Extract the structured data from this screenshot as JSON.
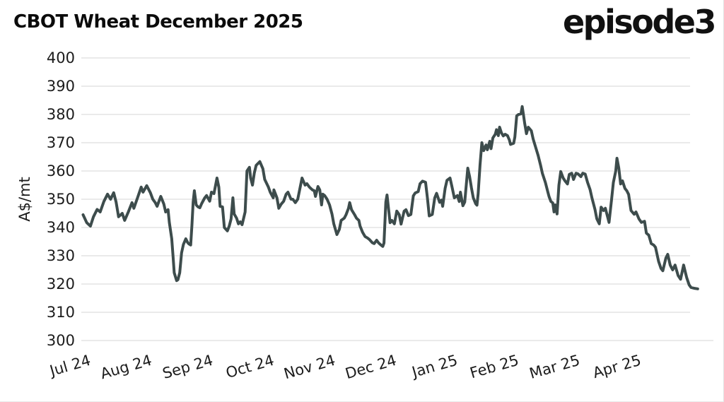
{
  "header": {
    "title": "CBOT Wheat December 2025",
    "logo": "episode3"
  },
  "chart_data": {
    "type": "line",
    "title": "CBOT Wheat December 2025",
    "xlabel": "",
    "ylabel": "A$/mt",
    "ylim": [
      300,
      400
    ],
    "y_ticks": [
      400,
      390,
      380,
      370,
      360,
      350,
      340,
      330,
      320,
      310,
      300
    ],
    "x_tick_labels": [
      "Jul 24",
      "Aug 24",
      "Sep 24",
      "Oct 24",
      "Nov 24",
      "Dec 24",
      "Jan 25",
      "Feb 25",
      "Mar 25",
      "Apr 25"
    ],
    "x_unit": "months since 1 Jul 2024 (0 = Jul 24 tick, 9 = Apr 25 tick)",
    "grid": "horizontal gridlines on, vertical off",
    "legend": "none",
    "line_color": "#3d4c4c",
    "grid_color": "#e3e3e3",
    "axis_text_color": "#1c1c1c",
    "series": [
      {
        "name": "CBOT Wheat December 2025 futures price (A$/mt)",
        "points": [
          [
            0.0,
            344.5
          ],
          [
            0.06,
            341.7
          ],
          [
            0.12,
            340.5
          ],
          [
            0.17,
            343.8
          ],
          [
            0.23,
            346.4
          ],
          [
            0.28,
            345.5
          ],
          [
            0.34,
            349.2
          ],
          [
            0.4,
            351.8
          ],
          [
            0.45,
            350.0
          ],
          [
            0.5,
            352.3
          ],
          [
            0.54,
            349.0
          ],
          [
            0.58,
            343.8
          ],
          [
            0.64,
            345.0
          ],
          [
            0.68,
            342.5
          ],
          [
            0.74,
            345.5
          ],
          [
            0.8,
            348.8
          ],
          [
            0.83,
            346.8
          ],
          [
            0.89,
            350.5
          ],
          [
            0.95,
            354.3
          ],
          [
            0.98,
            352.5
          ],
          [
            1.04,
            354.8
          ],
          [
            1.1,
            352.3
          ],
          [
            1.14,
            350.0
          ],
          [
            1.18,
            348.8
          ],
          [
            1.21,
            347.5
          ],
          [
            1.27,
            351.0
          ],
          [
            1.32,
            348.3
          ],
          [
            1.35,
            345.5
          ],
          [
            1.39,
            346.3
          ],
          [
            1.41,
            341.8
          ],
          [
            1.45,
            336.0
          ],
          [
            1.47,
            330.0
          ],
          [
            1.49,
            324.0
          ],
          [
            1.53,
            321.2
          ],
          [
            1.55,
            321.5
          ],
          [
            1.58,
            324.0
          ],
          [
            1.61,
            331.0
          ],
          [
            1.64,
            334.0
          ],
          [
            1.68,
            336.0
          ],
          [
            1.71,
            334.7
          ],
          [
            1.73,
            334.2
          ],
          [
            1.76,
            333.8
          ],
          [
            1.78,
            341.0
          ],
          [
            1.8,
            349.0
          ],
          [
            1.82,
            353.0
          ],
          [
            1.85,
            348.0
          ],
          [
            1.88,
            347.3
          ],
          [
            1.91,
            347.0
          ],
          [
            1.94,
            348.5
          ],
          [
            1.99,
            350.5
          ],
          [
            2.02,
            351.3
          ],
          [
            2.07,
            349.3
          ],
          [
            2.1,
            352.5
          ],
          [
            2.14,
            352.0
          ],
          [
            2.19,
            357.5
          ],
          [
            2.22,
            354.3
          ],
          [
            2.24,
            347.5
          ],
          [
            2.28,
            347.3
          ],
          [
            2.31,
            340.0
          ],
          [
            2.36,
            338.8
          ],
          [
            2.39,
            340.5
          ],
          [
            2.42,
            343.0
          ],
          [
            2.45,
            350.5
          ],
          [
            2.47,
            344.8
          ],
          [
            2.51,
            343.3
          ],
          [
            2.54,
            341.3
          ],
          [
            2.57,
            342.0
          ],
          [
            2.6,
            341.0
          ],
          [
            2.65,
            345.5
          ],
          [
            2.68,
            360.0
          ],
          [
            2.72,
            361.3
          ],
          [
            2.74,
            357.5
          ],
          [
            2.77,
            355.0
          ],
          [
            2.8,
            359.3
          ],
          [
            2.83,
            362.0
          ],
          [
            2.89,
            363.3
          ],
          [
            2.94,
            360.8
          ],
          [
            2.97,
            357.0
          ],
          [
            3.03,
            354.3
          ],
          [
            3.06,
            352.5
          ],
          [
            3.11,
            350.5
          ],
          [
            3.12,
            353.3
          ],
          [
            3.17,
            350.5
          ],
          [
            3.2,
            346.8
          ],
          [
            3.24,
            348.3
          ],
          [
            3.28,
            349.3
          ],
          [
            3.32,
            351.8
          ],
          [
            3.35,
            352.5
          ],
          [
            3.4,
            350.0
          ],
          [
            3.43,
            350.0
          ],
          [
            3.47,
            348.8
          ],
          [
            3.51,
            350.0
          ],
          [
            3.55,
            354.3
          ],
          [
            3.58,
            357.5
          ],
          [
            3.63,
            355.0
          ],
          [
            3.66,
            355.5
          ],
          [
            3.7,
            354.3
          ],
          [
            3.75,
            353.3
          ],
          [
            3.78,
            353.0
          ],
          [
            3.8,
            351.0
          ],
          [
            3.84,
            354.5
          ],
          [
            3.87,
            353.3
          ],
          [
            3.9,
            348.0
          ],
          [
            3.92,
            351.8
          ],
          [
            3.95,
            351.3
          ],
          [
            3.99,
            350.0
          ],
          [
            4.03,
            348.0
          ],
          [
            4.07,
            344.7
          ],
          [
            4.1,
            341.3
          ],
          [
            4.15,
            337.5
          ],
          [
            4.19,
            339.3
          ],
          [
            4.22,
            342.5
          ],
          [
            4.27,
            343.3
          ],
          [
            4.3,
            344.5
          ],
          [
            4.34,
            346.8
          ],
          [
            4.36,
            348.8
          ],
          [
            4.39,
            346.3
          ],
          [
            4.44,
            344.5
          ],
          [
            4.47,
            343.3
          ],
          [
            4.51,
            342.5
          ],
          [
            4.53,
            340.5
          ],
          [
            4.57,
            338.3
          ],
          [
            4.61,
            336.8
          ],
          [
            4.65,
            336.3
          ],
          [
            4.68,
            335.8
          ],
          [
            4.73,
            334.6
          ],
          [
            4.76,
            334.3
          ],
          [
            4.8,
            335.5
          ],
          [
            4.83,
            334.6
          ],
          [
            4.87,
            333.8
          ],
          [
            4.9,
            333.3
          ],
          [
            4.92,
            334.5
          ],
          [
            4.95,
            349.0
          ],
          [
            4.97,
            351.5
          ],
          [
            5.02,
            341.7
          ],
          [
            5.05,
            342.5
          ],
          [
            5.09,
            341.3
          ],
          [
            5.13,
            345.8
          ],
          [
            5.17,
            344.5
          ],
          [
            5.2,
            341.2
          ],
          [
            5.25,
            345.8
          ],
          [
            5.28,
            346.3
          ],
          [
            5.32,
            344.2
          ],
          [
            5.36,
            344.6
          ],
          [
            5.4,
            351.2
          ],
          [
            5.43,
            352.2
          ],
          [
            5.48,
            352.7
          ],
          [
            5.51,
            355.5
          ],
          [
            5.55,
            356.4
          ],
          [
            5.6,
            356.0
          ],
          [
            5.63,
            350.5
          ],
          [
            5.66,
            344.1
          ],
          [
            5.71,
            344.6
          ],
          [
            5.75,
            350.5
          ],
          [
            5.78,
            352.1
          ],
          [
            5.83,
            348.9
          ],
          [
            5.86,
            349.7
          ],
          [
            5.88,
            347.5
          ],
          [
            5.92,
            353.9
          ],
          [
            5.95,
            356.7
          ],
          [
            6.0,
            357.5
          ],
          [
            6.03,
            354.6
          ],
          [
            6.07,
            350.5
          ],
          [
            6.12,
            351.3
          ],
          [
            6.15,
            349.2
          ],
          [
            6.17,
            352.5
          ],
          [
            6.21,
            347.7
          ],
          [
            6.24,
            349.0
          ],
          [
            6.29,
            361.0
          ],
          [
            6.32,
            358.0
          ],
          [
            6.35,
            354.0
          ],
          [
            6.38,
            350.5
          ],
          [
            6.42,
            348.4
          ],
          [
            6.44,
            347.9
          ],
          [
            6.46,
            352.0
          ],
          [
            6.49,
            362.0
          ],
          [
            6.52,
            370.0
          ],
          [
            6.55,
            367.2
          ],
          [
            6.59,
            369.2
          ],
          [
            6.61,
            367.5
          ],
          [
            6.65,
            370.5
          ],
          [
            6.67,
            367.9
          ],
          [
            6.7,
            371.7
          ],
          [
            6.74,
            373.0
          ],
          [
            6.76,
            374.6
          ],
          [
            6.79,
            372.5
          ],
          [
            6.81,
            375.5
          ],
          [
            6.84,
            373.5
          ],
          [
            6.87,
            372.4
          ],
          [
            6.9,
            373.0
          ],
          [
            6.94,
            372.5
          ],
          [
            6.97,
            371.0
          ],
          [
            6.99,
            369.4
          ],
          [
            7.04,
            369.8
          ],
          [
            7.06,
            372.0
          ],
          [
            7.09,
            379.5
          ],
          [
            7.12,
            380.0
          ],
          [
            7.16,
            380.2
          ],
          [
            7.18,
            382.8
          ],
          [
            7.2,
            380.0
          ],
          [
            7.22,
            377.0
          ],
          [
            7.25,
            373.2
          ],
          [
            7.28,
            375.5
          ],
          [
            7.33,
            374.2
          ],
          [
            7.36,
            371.3
          ],
          [
            7.4,
            368.4
          ],
          [
            7.44,
            365.5
          ],
          [
            7.48,
            362.1
          ],
          [
            7.51,
            359.2
          ],
          [
            7.56,
            355.9
          ],
          [
            7.6,
            352.5
          ],
          [
            7.62,
            350.9
          ],
          [
            7.65,
            349.2
          ],
          [
            7.68,
            348.7
          ],
          [
            7.7,
            345.5
          ],
          [
            7.72,
            348.0
          ],
          [
            7.75,
            344.8
          ],
          [
            7.78,
            355.0
          ],
          [
            7.81,
            359.8
          ],
          [
            7.85,
            357.5
          ],
          [
            7.88,
            356.5
          ],
          [
            7.92,
            355.4
          ],
          [
            7.95,
            358.8
          ],
          [
            7.99,
            359.2
          ],
          [
            8.02,
            357.0
          ],
          [
            8.06,
            359.2
          ],
          [
            8.09,
            359.0
          ],
          [
            8.14,
            358.0
          ],
          [
            8.17,
            359.2
          ],
          [
            8.21,
            358.9
          ],
          [
            8.25,
            355.9
          ],
          [
            8.29,
            353.4
          ],
          [
            8.32,
            350.5
          ],
          [
            8.37,
            346.4
          ],
          [
            8.4,
            343.1
          ],
          [
            8.44,
            341.3
          ],
          [
            8.47,
            347.2
          ],
          [
            8.51,
            346.0
          ],
          [
            8.54,
            346.8
          ],
          [
            8.6,
            341.8
          ],
          [
            8.64,
            349.7
          ],
          [
            8.67,
            355.9
          ],
          [
            8.71,
            360.0
          ],
          [
            8.73,
            364.5
          ],
          [
            8.76,
            361.0
          ],
          [
            8.79,
            355.4
          ],
          [
            8.82,
            356.5
          ],
          [
            8.86,
            353.8
          ],
          [
            8.89,
            353.0
          ],
          [
            8.92,
            351.7
          ],
          [
            8.96,
            346.0
          ],
          [
            9.01,
            344.7
          ],
          [
            9.04,
            345.5
          ],
          [
            9.09,
            343.0
          ],
          [
            9.13,
            341.8
          ],
          [
            9.18,
            342.2
          ],
          [
            9.21,
            338.0
          ],
          [
            9.25,
            337.3
          ],
          [
            9.29,
            334.3
          ],
          [
            9.33,
            333.8
          ],
          [
            9.36,
            333.0
          ],
          [
            9.41,
            328.0
          ],
          [
            9.45,
            325.5
          ],
          [
            9.48,
            324.7
          ],
          [
            9.53,
            329.2
          ],
          [
            9.56,
            330.5
          ],
          [
            9.6,
            326.7
          ],
          [
            9.64,
            325.0
          ],
          [
            9.68,
            326.7
          ],
          [
            9.73,
            323.0
          ],
          [
            9.77,
            321.7
          ],
          [
            9.82,
            326.7
          ],
          [
            9.85,
            324.0
          ],
          [
            9.87,
            322.2
          ],
          [
            9.91,
            319.7
          ],
          [
            9.94,
            318.8
          ],
          [
            9.99,
            318.5
          ],
          [
            10.05,
            318.3
          ]
        ]
      }
    ]
  }
}
